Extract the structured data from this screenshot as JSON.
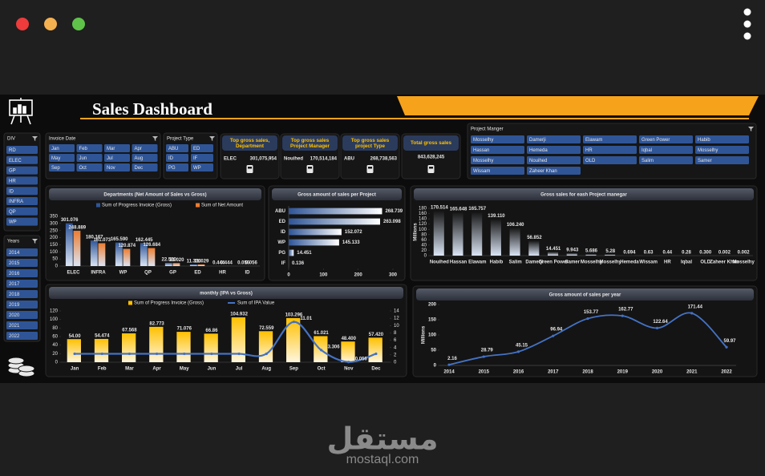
{
  "header": {
    "title": "Sales Dashboard"
  },
  "slicers": [
    {
      "title": "DIV",
      "items": [
        "RD",
        "ELEC",
        "GP",
        "HR",
        "ID",
        "INFRA",
        "QP",
        "WP"
      ]
    },
    {
      "title": "Years",
      "items": [
        "2014",
        "2015",
        "2016",
        "2017",
        "2018",
        "2019",
        "2020",
        "2021",
        "2022"
      ]
    },
    {
      "title": "Invoice Date",
      "items": [
        "Jan",
        "Feb",
        "Mar",
        "Apr",
        "May",
        "Jun",
        "Jul",
        "Aug",
        "Sep",
        "Oct",
        "Nov",
        "Dec"
      ]
    },
    {
      "title": "Project Type",
      "items": [
        "ABU",
        "ED",
        "ID",
        "IF",
        "PG",
        "WP"
      ]
    },
    {
      "title": "Project Manger",
      "items": [
        "Mosselhy",
        "Damerji",
        "Elawam",
        "Green Power",
        "Habib",
        "Hassan",
        "Hemeda",
        "HR",
        "Iqbal",
        "Mosselhy",
        "Mosselhy",
        "Nouihed",
        "OLD",
        "Salim",
        "Samer",
        "Wissam",
        "Zaheer Khan"
      ]
    }
  ],
  "kpis": [
    {
      "title": "Top gross sales, Department",
      "name": "ELEC",
      "value": "301,075,954"
    },
    {
      "title": "Top gross sales Project Manager",
      "name": "Nouihed",
      "value": "170,514,184"
    },
    {
      "title": "Top gross sales project Type",
      "name": "ABU",
      "value": "268,738,563"
    },
    {
      "title": "Total gross sales",
      "value": "843,628,245"
    }
  ],
  "chart_data": [
    {
      "type": "bar",
      "title": "Departments (Net Amount of Sales vs Gross)",
      "categories": [
        "ELEC",
        "INFRA",
        "WP",
        "QP",
        "GP",
        "ED",
        "HR",
        "ID"
      ],
      "series": [
        {
          "name": "Sum of Progress Invoice (Gross)",
          "color": "#2f5597",
          "values": [
            301.076,
            180.167,
            165.59,
            162.445,
            22.52,
            11.33,
            0.444,
            0.056
          ],
          "value_labels": [
            "301.076",
            "180.167",
            "165.590",
            "162.445",
            "22.520",
            "11.330",
            "0.444",
            "0.056"
          ]
        },
        {
          "name": "Sum of Net Amount",
          "color": "#ed7d31",
          "values": [
            248.889,
            161.073,
            120.874,
            126.684,
            21.02,
            11.029,
            0.444,
            0.056
          ],
          "value_labels": [
            "248.889",
            "161.073",
            "120.874",
            "126.684",
            "21.020",
            "11.029",
            "0.444",
            "0.056"
          ]
        }
      ],
      "ylim": [
        0,
        350
      ],
      "yticks": [
        0,
        50,
        100,
        150,
        200,
        250,
        300,
        350
      ]
    },
    {
      "type": "hbar",
      "title": "Gross amount of sales per Project",
      "categories": [
        "ABU",
        "ED",
        "ID",
        "WP",
        "PG",
        "IF"
      ],
      "values": [
        268.739,
        263.098,
        152.072,
        145.133,
        14.451,
        0.136
      ],
      "color": "#2f5597",
      "xlim": [
        0,
        300
      ],
      "xticks": [
        0,
        100,
        200,
        300
      ]
    },
    {
      "type": "bar",
      "title": "Gross sales for eash Project manegar",
      "y_label": "Millions",
      "categories": [
        "Nouihed",
        "Hassan",
        "Elawam",
        "Habib",
        "Salim",
        "Damerji",
        "Green Power",
        "Samer",
        "Mosselhy",
        "Mosselhy",
        "Hemeda",
        "Wissam",
        "HR",
        "Iqbal",
        "OLD",
        "Zaheer Khan",
        "Mosselhy"
      ],
      "series": [
        {
          "name": "Gross sales",
          "color": "#151515",
          "values": [
            170.514,
            165.648,
            165.757,
            139.11,
            106.24,
            56.852,
            14.451,
            9.943,
            5.686,
            5.28,
            0.694,
            0.63,
            0.44,
            0.28,
            0.3,
            0.002,
            0.002
          ],
          "value_labels": [
            "170.514",
            "165.648",
            "165.757",
            "139.110",
            "106.240",
            "56.852",
            "14.451",
            "9.943",
            "5.686",
            "5.28",
            "0.694",
            "0.63",
            "0.44",
            "0.28",
            "0.300",
            "0.002",
            "0.002"
          ]
        }
      ],
      "ylim": [
        0,
        180
      ],
      "yticks": [
        0,
        20,
        40,
        60,
        80,
        100,
        120,
        140,
        160,
        180
      ]
    },
    {
      "type": "bar",
      "title": "monthly (IPA vs Gross)",
      "categories": [
        "Jan",
        "Feb",
        "Mar",
        "Apr",
        "May",
        "Jun",
        "Jul",
        "Aug",
        "Sep",
        "Oct",
        "Nov",
        "Dec"
      ],
      "series": [
        {
          "name": "Sum of Progress Invoice (Gross)",
          "color": "#ffc000",
          "values": [
            54,
            54.474,
            67.568,
            82.773,
            71.076,
            66.86,
            104.932,
            72.559,
            103.296,
            61.021,
            48.4,
            57.42
          ],
          "value_labels": [
            "54.00",
            "54.474",
            "67.568",
            "82.773",
            "71.076",
            "66.86",
            "104.932",
            "72.559",
            "103.296",
            "61.021",
            "48.400",
            "57.420"
          ]
        },
        {
          "name": "Sum of IPA Value",
          "color": "#4472c4",
          "axis": "y2",
          "values": [
            2.3,
            2.3,
            2.3,
            2.3,
            2.3,
            2.3,
            2.3,
            2.3,
            11.01,
            3.306,
            0.056,
            2.3
          ],
          "value_labels": [
            null,
            null,
            null,
            null,
            null,
            null,
            null,
            null,
            "11.01",
            "3.306",
            "0.056",
            null
          ]
        }
      ],
      "ylim": [
        0,
        120
      ],
      "yticks": [
        0,
        20,
        40,
        60,
        80,
        100,
        120
      ],
      "y2lim": [
        0,
        14
      ],
      "y2ticks": [
        0,
        2,
        4,
        6,
        8,
        10,
        12,
        14
      ]
    },
    {
      "type": "line",
      "title": "Gross amount of sales per year",
      "y_label": "Millions",
      "categories": [
        "2014",
        "2015",
        "2016",
        "2017",
        "2018",
        "2019",
        "2020",
        "2021",
        "2022"
      ],
      "values": [
        2.16,
        28.79,
        45.15,
        96.94,
        153.77,
        162.77,
        122.64,
        171.44,
        59.97
      ],
      "color": "#4472c4",
      "ylim": [
        0,
        200
      ],
      "yticks": [
        0,
        50,
        100,
        150,
        200
      ]
    }
  ],
  "watermark": {
    "arabic": "مستقل",
    "latin": "mostaql.com"
  }
}
